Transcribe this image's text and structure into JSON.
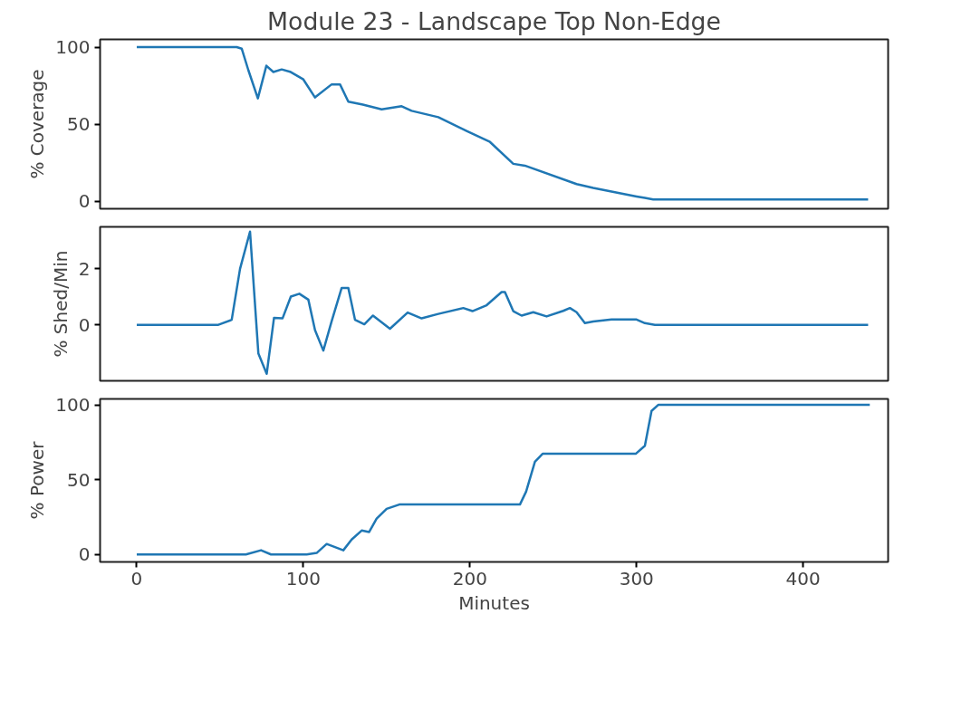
{
  "chart_data": [
    {
      "type": "line",
      "title": "Module 23 - Landscape Top Non-Edge",
      "ylabel": "% Coverage",
      "xlim": [
        -22,
        451
      ],
      "ylim": [
        -5,
        105
      ],
      "yticks": [
        0,
        50,
        100
      ],
      "tick_labels": "y",
      "grid": false,
      "marker": "none",
      "line_style": "solid",
      "x": [
        0,
        60,
        63,
        67,
        72.7,
        77.8,
        82,
        87,
        92,
        100,
        107,
        117,
        122,
        127,
        135.7,
        147,
        159,
        165,
        181,
        198,
        212,
        226,
        233,
        264,
        274,
        300,
        305,
        310,
        439
      ],
      "series": [
        {
          "color": "#1f77b4",
          "values": [
            100,
            100,
            99,
            85,
            66.7,
            87.9,
            83.8,
            85.5,
            84,
            79,
            67.3,
            75.8,
            75.8,
            64.6,
            62.6,
            59.6,
            61.6,
            58.6,
            54.5,
            45.5,
            38.4,
            24.2,
            23,
            11,
            8.5,
            3,
            2,
            1,
            1
          ]
        }
      ]
    },
    {
      "type": "line",
      "ylabel": "% Shed/Min",
      "xlim": [
        -22,
        451
      ],
      "ylim": [
        -2,
        3.5
      ],
      "yticks": [
        0,
        2
      ],
      "tick_labels": "y",
      "grid": false,
      "marker": "none",
      "line_style": "solid",
      "x": [
        0,
        49,
        57,
        62,
        68,
        73,
        78,
        82.4,
        87.5,
        92.5,
        97.6,
        103,
        107,
        112,
        117,
        123,
        127,
        131,
        136.6,
        141.8,
        152,
        162.6,
        171,
        181,
        196,
        201.5,
        210,
        219,
        221,
        226,
        231,
        238,
        246,
        256,
        260,
        264,
        269,
        274,
        285,
        300,
        305,
        311,
        439
      ],
      "series": [
        {
          "color": "#1f77b4",
          "values": [
            0,
            0,
            0.18,
            2.0,
            3.33,
            -1.02,
            -1.75,
            0.25,
            0.23,
            1.01,
            1.11,
            0.9,
            -0.19,
            -0.92,
            0.13,
            1.32,
            1.32,
            0.18,
            0.02,
            0.33,
            -0.14,
            0.44,
            0.23,
            0.39,
            0.6,
            0.49,
            0.7,
            1.17,
            1.17,
            0.49,
            0.33,
            0.45,
            0.3,
            0.5,
            0.6,
            0.45,
            0.06,
            0.12,
            0.19,
            0.19,
            0.06,
            0,
            0
          ]
        }
      ]
    },
    {
      "type": "line",
      "ylabel": "% Power",
      "xlabel": "Minutes",
      "xlim": [
        -22,
        451
      ],
      "ylim": [
        -5,
        104
      ],
      "yticks": [
        0,
        50,
        100
      ],
      "xticks": [
        0,
        100,
        200,
        300,
        400
      ],
      "grid": false,
      "marker": "none",
      "line_style": "solid",
      "x": [
        0,
        65.5,
        74.6,
        80.6,
        102,
        108,
        114,
        124,
        129,
        135,
        139.5,
        144,
        150,
        157.6,
        230,
        233.7,
        239,
        243.6,
        299.5,
        305,
        309,
        313,
        440
      ],
      "series": [
        {
          "color": "#1f77b4",
          "values": [
            0,
            0,
            2.8,
            0,
            0,
            1,
            7,
            2.8,
            10,
            16,
            15,
            24,
            30.5,
            33.4,
            33.4,
            42,
            62,
            67.3,
            67.3,
            72.7,
            96,
            100,
            100
          ]
        }
      ]
    }
  ]
}
